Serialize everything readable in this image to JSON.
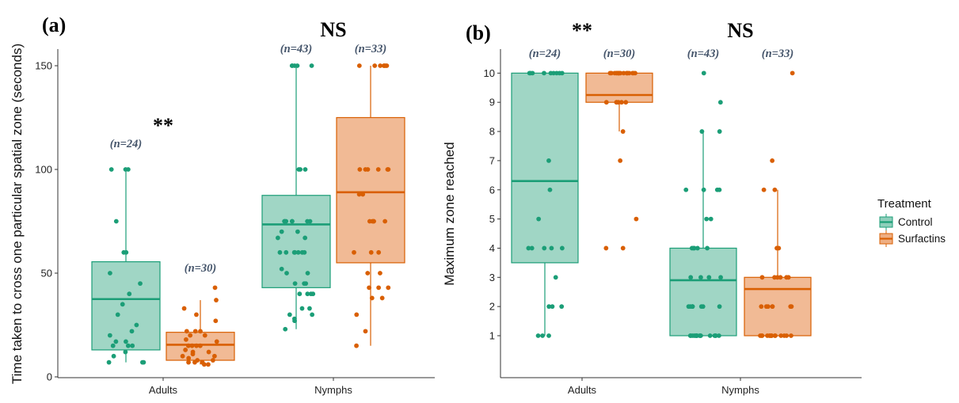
{
  "legend": {
    "title": "Treatment",
    "items": [
      {
        "label": "Control",
        "color": "#1b9e77",
        "fill": "#8fcfbb"
      },
      {
        "label": "Surfactins",
        "color": "#d95f02",
        "fill": "#eeae82"
      }
    ]
  },
  "chart_data": [
    {
      "type": "box",
      "panel_label": "(a)",
      "ylabel": "Time taken to cross one particular spatial zone (seconds)",
      "xlabel": "",
      "categories": [
        "Adults",
        "Nymphs"
      ],
      "ylim": [
        0,
        158
      ],
      "yticks": [
        0,
        50,
        100,
        150
      ],
      "significance": [
        "**",
        "NS"
      ],
      "series": [
        {
          "name": "Control",
          "boxes": [
            {
              "category": "Adults",
              "n_label": "(n=24)",
              "min": 7,
              "q1": 13,
              "median": 37.5,
              "q3": 55.5,
              "max": 100,
              "points": [
                100,
                100,
                100,
                75,
                60,
                60,
                50,
                45,
                40,
                35,
                30,
                25,
                22,
                20,
                17,
                17,
                15,
                15,
                15,
                12,
                10,
                7,
                7,
                7
              ]
            },
            {
              "category": "Nymphs",
              "n_label": "(n=43)",
              "min": 23,
              "q1": 43,
              "median": 73.5,
              "q3": 87.5,
              "max": 150,
              "points": [
                150,
                150,
                150,
                150,
                150,
                100,
                100,
                100,
                75,
                75,
                75,
                75,
                75,
                75,
                75,
                70,
                70,
                67,
                67,
                60,
                60,
                60,
                60,
                60,
                60,
                60,
                52,
                50,
                50,
                45,
                45,
                45,
                40,
                40,
                40,
                40,
                33,
                33,
                30,
                30,
                28,
                27,
                23
              ]
            }
          ]
        },
        {
          "name": "Surfactins",
          "boxes": [
            {
              "category": "Adults",
              "n_label": "(n=30)",
              "min": 6,
              "q1": 8,
              "median": 15.5,
              "q3": 21.5,
              "max": 37,
              "points": [
                43,
                37,
                33,
                30,
                27,
                22,
                22,
                22,
                20,
                20,
                18,
                17,
                15,
                15,
                15,
                15,
                13,
                12,
                12,
                11,
                10,
                10,
                9,
                8,
                8,
                7,
                7,
                7,
                6,
                6
              ]
            },
            {
              "category": "Nymphs",
              "n_label": "(n=33)",
              "min": 15,
              "q1": 55,
              "median": 89,
              "q3": 125,
              "max": 150,
              "points": [
                150,
                150,
                150,
                150,
                150,
                150,
                150,
                100,
                100,
                100,
                100,
                100,
                100,
                88,
                88,
                75,
                75,
                75,
                75,
                75,
                60,
                60,
                60,
                50,
                50,
                43,
                43,
                43,
                38,
                38,
                30,
                22,
                15
              ]
            }
          ]
        }
      ]
    },
    {
      "type": "box",
      "panel_label": "(b)",
      "ylabel": "Maximum zone reached",
      "xlabel": "",
      "categories": [
        "Adults",
        "Nymphs"
      ],
      "ylim": [
        -0.3,
        10.6
      ],
      "yticks": [
        1,
        2,
        3,
        4,
        5,
        6,
        7,
        8,
        9,
        10
      ],
      "significance": [
        "**",
        "NS"
      ],
      "series": [
        {
          "name": "Control",
          "boxes": [
            {
              "category": "Adults",
              "n_label": "(n=24)",
              "min": 1,
              "q1": 3.5,
              "median": 6.3,
              "q3": 10,
              "max": 10,
              "points": [
                10,
                10,
                10,
                10,
                10,
                10,
                10,
                10,
                10,
                7,
                6,
                5,
                4,
                4,
                4,
                4,
                4,
                3,
                2,
                2,
                2,
                1,
                1,
                1
              ]
            },
            {
              "category": "Nymphs",
              "n_label": "(n=43)",
              "min": 1,
              "q1": 1,
              "median": 2.9,
              "q3": 4,
              "max": 8,
              "points": [
                10,
                9,
                8,
                8,
                6,
                6,
                6,
                6,
                5,
                5,
                4,
                4,
                4,
                4,
                4,
                3,
                3,
                3,
                3,
                2,
                2,
                2,
                2,
                2,
                2,
                2,
                2,
                1,
                1,
                1,
                1,
                1,
                1,
                1,
                1,
                1,
                1,
                1,
                1,
                1,
                1,
                1,
                1
              ]
            }
          ]
        },
        {
          "name": "Surfactins",
          "boxes": [
            {
              "category": "Adults",
              "n_label": "(n=30)",
              "min": 8,
              "q1": 9,
              "median": 9.25,
              "q3": 10,
              "max": 10,
              "points": [
                10,
                10,
                10,
                10,
                10,
                10,
                10,
                10,
                10,
                10,
                10,
                10,
                10,
                10,
                10,
                10,
                10,
                10,
                10,
                9,
                9,
                9,
                9,
                9,
                9,
                8,
                7,
                5,
                4,
                4
              ]
            },
            {
              "category": "Nymphs",
              "n_label": "(n=33)",
              "min": 1,
              "q1": 1,
              "median": 2.6,
              "q3": 3,
              "max": 6,
              "points": [
                10,
                7,
                6,
                6,
                4,
                4,
                3,
                3,
                3,
                3,
                3,
                3,
                2,
                2,
                2,
                2,
                2,
                2,
                2,
                1,
                1,
                1,
                1,
                1,
                1,
                1,
                1,
                1,
                1,
                1,
                1,
                1,
                1
              ]
            }
          ]
        }
      ]
    }
  ]
}
